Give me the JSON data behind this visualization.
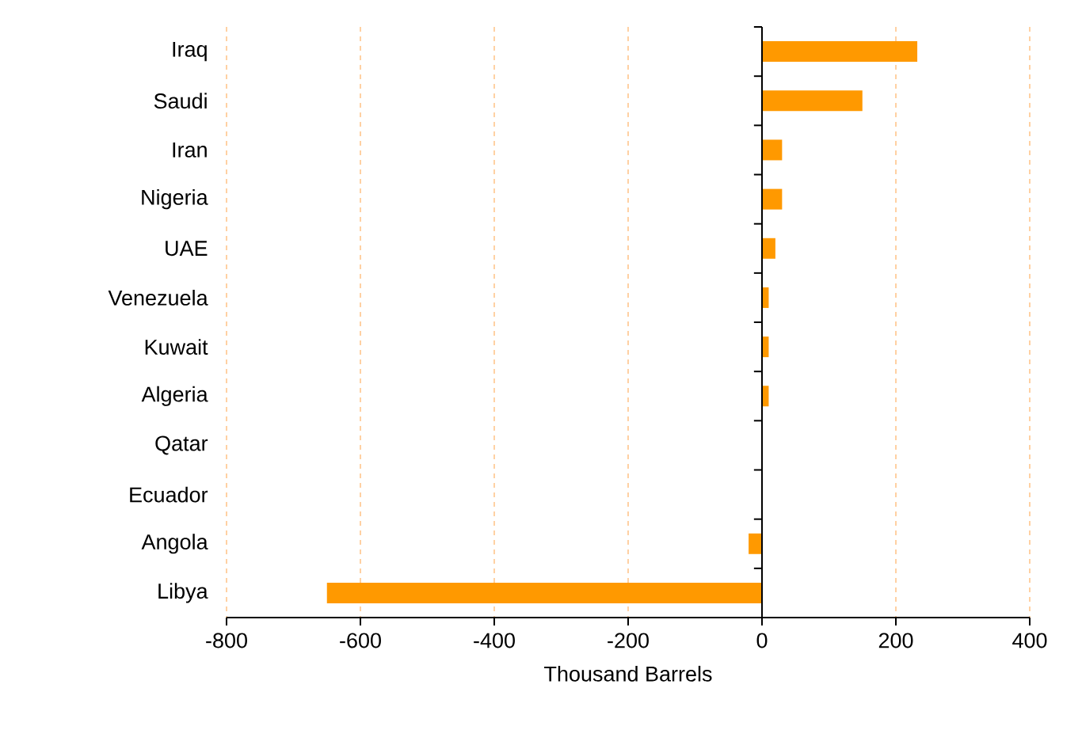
{
  "chart_data": {
    "type": "bar",
    "orientation": "horizontal",
    "categories": [
      "Iraq",
      "Saudi",
      "Iran",
      "Nigeria",
      "UAE",
      "Venezuela",
      "Kuwait",
      "Algeria",
      "Qatar",
      "Ecuador",
      "Angola",
      "Libya"
    ],
    "values": [
      232,
      150,
      30,
      30,
      20,
      10,
      10,
      10,
      0,
      0,
      -20,
      -650
    ],
    "color": "#ff9900",
    "xlim": [
      -800,
      400
    ],
    "xticks": [
      -800,
      -600,
      -400,
      -200,
      0,
      200,
      400
    ],
    "xlabel": "Thousand Barrels",
    "grid": "x"
  }
}
